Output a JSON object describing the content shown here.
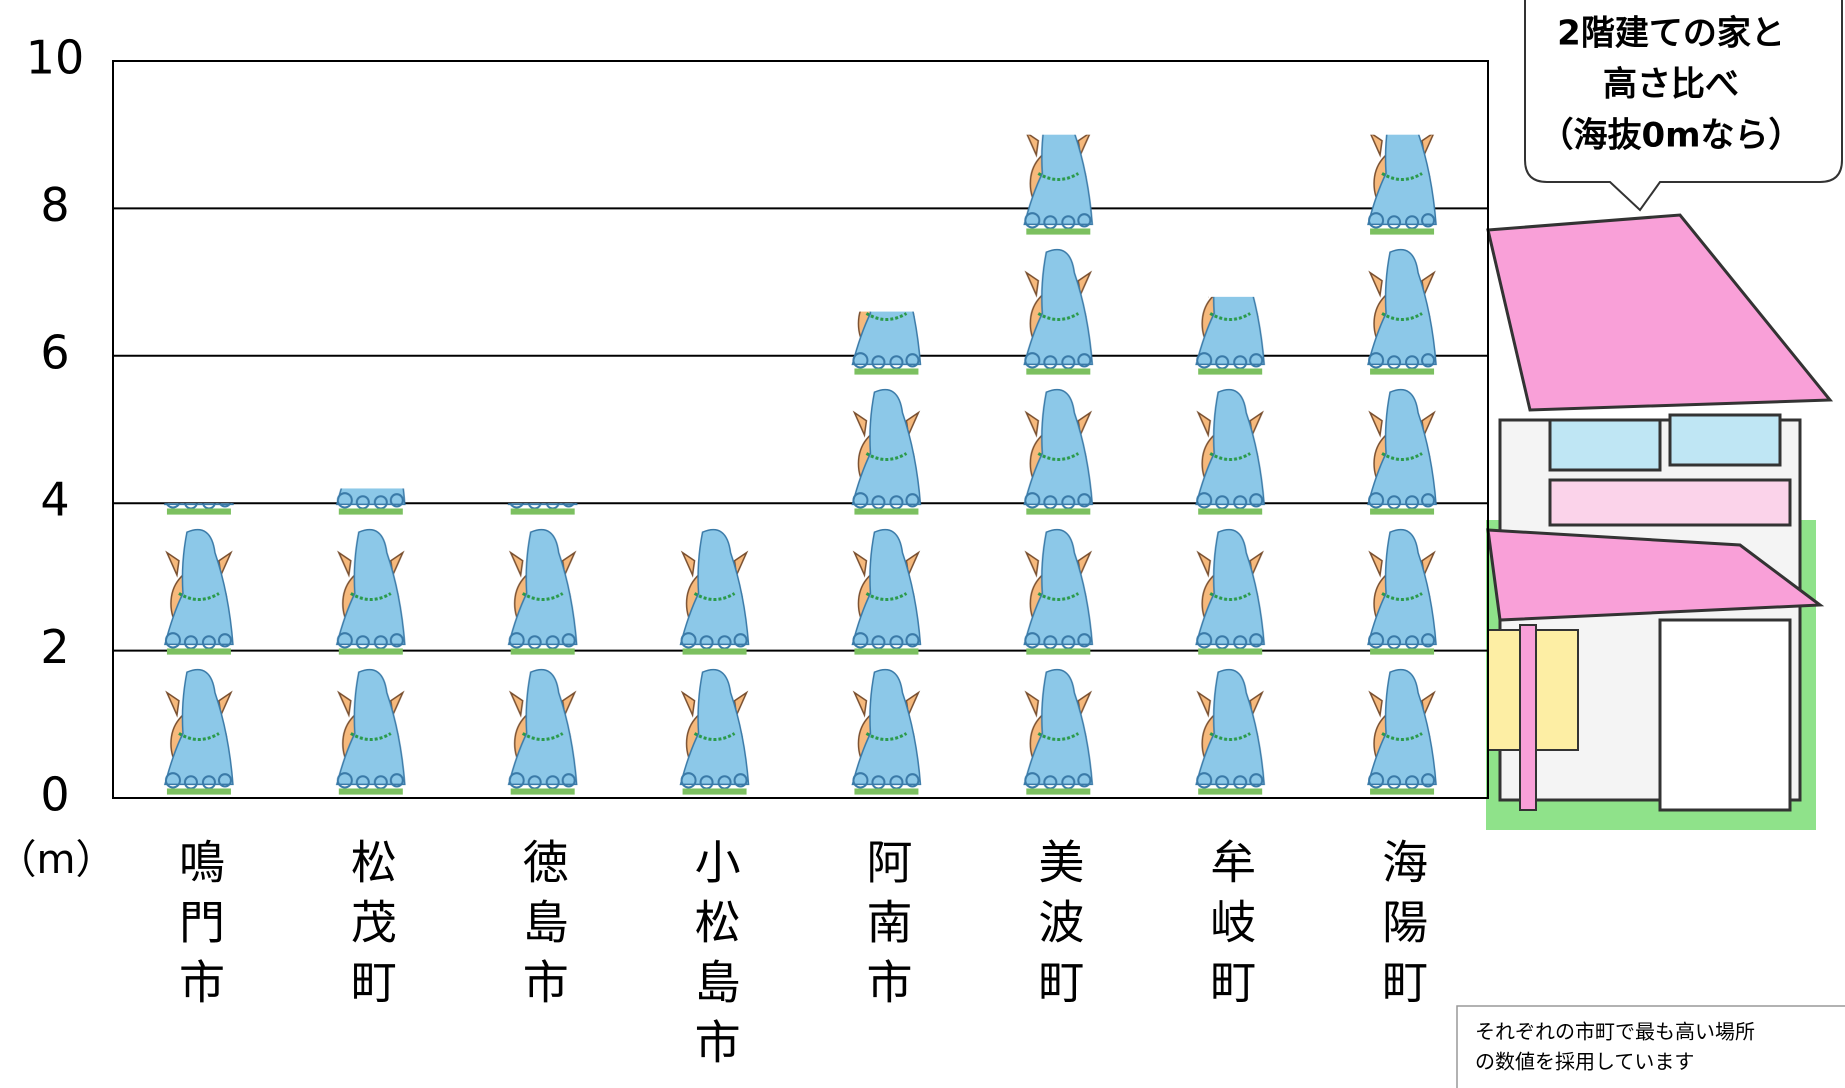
{
  "chart_data": {
    "type": "pictogram-bar",
    "y_label": "（m）",
    "categories": [
      "鳴門市",
      "松茂町",
      "徳島市",
      "小松島市",
      "阿南市",
      "美波町",
      "牟岐町",
      "海陽町"
    ],
    "values": [
      4.0,
      4.2,
      4.0,
      3.8,
      6.6,
      9.0,
      6.8,
      9.0
    ],
    "ylim": [
      0,
      10
    ],
    "yticks": [
      0,
      2,
      4,
      6,
      8,
      10
    ],
    "grid": true,
    "callout": [
      "2階建ての家と",
      "高さ比べ",
      "（海抜0mなら）"
    ],
    "note": [
      "それぞれの市町で最も高い場所",
      "の数値を採用しています"
    ]
  }
}
